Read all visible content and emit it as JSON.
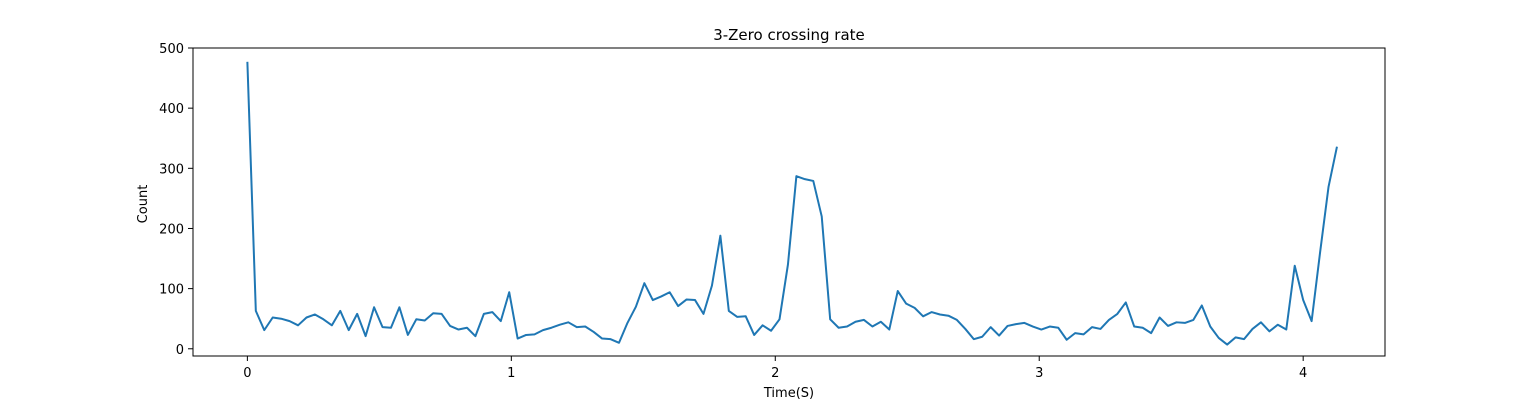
{
  "chart_data": {
    "type": "line",
    "title": "3-Zero crossing rate",
    "xlabel": "Time(S)",
    "ylabel": "Count",
    "xlim": [
      -0.206,
      4.31
    ],
    "ylim": [
      -12,
      500
    ],
    "xticks": [
      0,
      1,
      2,
      3,
      4
    ],
    "xtick_labels": [
      "0",
      "1",
      "2",
      "3",
      "4"
    ],
    "yticks": [
      0,
      100,
      200,
      300,
      400,
      500
    ],
    "ytick_labels": [
      "0",
      "100",
      "200",
      "300",
      "400",
      "500"
    ],
    "grid": false,
    "legend": "none",
    "series": [
      {
        "color": "#1f77b4",
        "x_step": 0.032,
        "x_start": 0,
        "values": [
          477,
          63,
          31,
          52,
          50,
          46,
          39,
          52,
          57,
          49,
          39,
          63,
          31,
          58,
          21,
          69,
          36,
          35,
          69,
          23,
          49,
          47,
          59,
          58,
          38,
          32,
          35,
          21,
          58,
          61,
          46,
          94,
          17,
          23,
          24,
          31,
          35,
          40,
          44,
          36,
          37,
          28,
          17,
          16,
          10,
          43,
          70,
          109,
          81,
          87,
          94,
          71,
          82,
          81,
          58,
          105,
          188,
          63,
          53,
          54,
          23,
          39,
          30,
          49,
          140,
          287,
          282,
          279,
          220,
          49,
          35,
          37,
          45,
          48,
          37,
          45,
          32,
          96,
          75,
          68,
          54,
          61,
          57,
          55,
          48,
          33,
          16,
          20,
          36,
          22,
          38,
          41,
          43,
          37,
          32,
          37,
          35,
          15,
          26,
          24,
          36,
          33,
          48,
          58,
          77,
          37,
          35,
          26,
          52,
          38,
          44,
          43,
          48,
          72,
          37,
          18,
          7,
          19,
          16,
          33,
          44,
          29,
          40,
          32,
          138,
          81,
          46,
          160,
          269,
          336
        ]
      }
    ]
  }
}
